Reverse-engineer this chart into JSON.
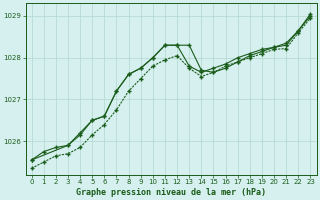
{
  "xlabel": "Graphe pression niveau de la mer (hPa)",
  "xlim": [
    -0.5,
    23.5
  ],
  "ylim": [
    1025.2,
    1029.3
  ],
  "yticks": [
    1026,
    1027,
    1028,
    1029
  ],
  "xticks": [
    0,
    1,
    2,
    3,
    4,
    5,
    6,
    7,
    8,
    9,
    10,
    11,
    12,
    13,
    14,
    15,
    16,
    17,
    18,
    19,
    20,
    21,
    22,
    23
  ],
  "background_color": "#d6f0f0",
  "grid_color": "#b0d8cc",
  "line_color": "#1a5c1a",
  "line1_x": [
    0,
    1,
    2,
    3,
    4,
    5,
    6,
    7,
    8,
    9,
    10,
    11,
    12,
    13,
    14,
    15,
    16,
    17,
    18,
    19,
    20,
    21,
    22,
    23
  ],
  "line1_y": [
    1025.55,
    1025.75,
    1025.85,
    1025.9,
    1026.15,
    1026.5,
    1026.6,
    1027.2,
    1027.6,
    1027.75,
    1028.0,
    1028.3,
    1028.3,
    1027.8,
    1027.65,
    1027.75,
    1027.85,
    1028.0,
    1028.1,
    1028.2,
    1028.25,
    1028.3,
    1028.65,
    1029.0
  ],
  "line2_x": [
    0,
    1,
    2,
    3,
    4,
    5,
    6,
    7,
    8,
    9,
    10,
    11,
    12,
    13,
    14,
    15,
    16,
    17,
    18,
    19,
    20,
    21,
    22,
    23
  ],
  "line2_y": [
    1025.35,
    1025.5,
    1025.65,
    1025.7,
    1025.85,
    1026.15,
    1026.4,
    1026.75,
    1027.2,
    1027.5,
    1027.8,
    1027.95,
    1028.05,
    1027.75,
    1027.55,
    1027.65,
    1027.8,
    1027.9,
    1028.0,
    1028.1,
    1028.2,
    1028.22,
    1028.6,
    1028.95
  ],
  "line3_x": [
    0,
    3,
    4,
    5,
    6,
    7,
    8,
    9,
    10,
    11,
    12,
    13,
    14,
    15,
    16,
    17,
    18,
    19,
    20,
    21,
    22,
    23
  ],
  "line3_y": [
    1025.55,
    1025.9,
    1026.2,
    1026.5,
    1026.6,
    1027.2,
    1027.6,
    1027.75,
    1028.0,
    1028.3,
    1028.3,
    1028.3,
    1027.7,
    1027.65,
    1027.75,
    1027.9,
    1028.05,
    1028.15,
    1028.25,
    1028.35,
    1028.65,
    1029.05
  ]
}
